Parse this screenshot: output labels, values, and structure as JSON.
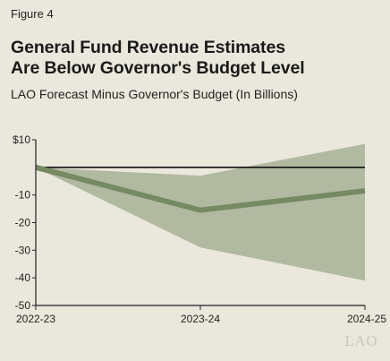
{
  "figure_label": "Figure 4",
  "logo_text": "LAO",
  "chart_data": {
    "type": "area",
    "title_lines": [
      "General Fund Revenue Estimates",
      "Are Below Governor's Budget Level"
    ],
    "subtitle": "LAO Forecast Minus Governor's Budget (In Billions)",
    "categories": [
      "2022-23",
      "2023-24",
      "2024-25"
    ],
    "series": [
      {
        "role": "estimate",
        "values": [
          0,
          -15.5,
          -8.5
        ]
      },
      {
        "role": "band_upper",
        "values": [
          0,
          -3,
          8.5
        ]
      },
      {
        "role": "band_lower",
        "values": [
          0,
          -29,
          -41
        ]
      }
    ],
    "reference_line": 0,
    "ylim": [
      -50,
      10
    ],
    "yticks": [
      10,
      -10,
      -20,
      -30,
      -40,
      -50
    ],
    "ytick_labels": [
      "$10",
      "-10",
      "-20",
      "-30",
      "-40",
      "-50"
    ],
    "colors": {
      "band": "#b2b9a1",
      "line": "#758a63",
      "axis": "#222222",
      "background": "#eae7dc"
    },
    "grid": false
  }
}
